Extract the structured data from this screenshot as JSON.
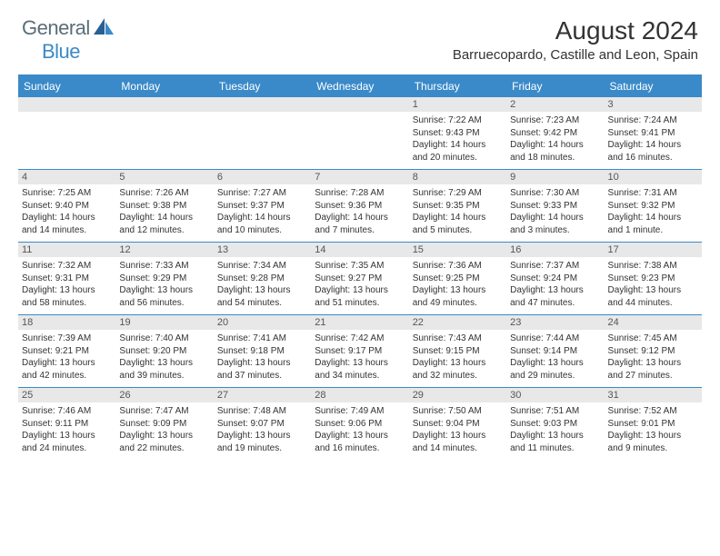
{
  "brand": {
    "general": "General",
    "blue": "Blue"
  },
  "title": "August 2024",
  "location": "Barruecopardo, Castille and Leon, Spain",
  "weekdays": [
    "Sunday",
    "Monday",
    "Tuesday",
    "Wednesday",
    "Thursday",
    "Friday",
    "Saturday"
  ],
  "colors": {
    "accent": "#3a8ac9",
    "weekday_bg": "#3a8ac9",
    "daynum_bg": "#e8e8e8",
    "text": "#333333",
    "logo_gray": "#5a6e78"
  },
  "weeks": [
    [
      {
        "n": "",
        "lines": []
      },
      {
        "n": "",
        "lines": []
      },
      {
        "n": "",
        "lines": []
      },
      {
        "n": "",
        "lines": []
      },
      {
        "n": "1",
        "lines": [
          "Sunrise: 7:22 AM",
          "Sunset: 9:43 PM",
          "Daylight: 14 hours and 20 minutes."
        ]
      },
      {
        "n": "2",
        "lines": [
          "Sunrise: 7:23 AM",
          "Sunset: 9:42 PM",
          "Daylight: 14 hours and 18 minutes."
        ]
      },
      {
        "n": "3",
        "lines": [
          "Sunrise: 7:24 AM",
          "Sunset: 9:41 PM",
          "Daylight: 14 hours and 16 minutes."
        ]
      }
    ],
    [
      {
        "n": "4",
        "lines": [
          "Sunrise: 7:25 AM",
          "Sunset: 9:40 PM",
          "Daylight: 14 hours and 14 minutes."
        ]
      },
      {
        "n": "5",
        "lines": [
          "Sunrise: 7:26 AM",
          "Sunset: 9:38 PM",
          "Daylight: 14 hours and 12 minutes."
        ]
      },
      {
        "n": "6",
        "lines": [
          "Sunrise: 7:27 AM",
          "Sunset: 9:37 PM",
          "Daylight: 14 hours and 10 minutes."
        ]
      },
      {
        "n": "7",
        "lines": [
          "Sunrise: 7:28 AM",
          "Sunset: 9:36 PM",
          "Daylight: 14 hours and 7 minutes."
        ]
      },
      {
        "n": "8",
        "lines": [
          "Sunrise: 7:29 AM",
          "Sunset: 9:35 PM",
          "Daylight: 14 hours and 5 minutes."
        ]
      },
      {
        "n": "9",
        "lines": [
          "Sunrise: 7:30 AM",
          "Sunset: 9:33 PM",
          "Daylight: 14 hours and 3 minutes."
        ]
      },
      {
        "n": "10",
        "lines": [
          "Sunrise: 7:31 AM",
          "Sunset: 9:32 PM",
          "Daylight: 14 hours and 1 minute."
        ]
      }
    ],
    [
      {
        "n": "11",
        "lines": [
          "Sunrise: 7:32 AM",
          "Sunset: 9:31 PM",
          "Daylight: 13 hours and 58 minutes."
        ]
      },
      {
        "n": "12",
        "lines": [
          "Sunrise: 7:33 AM",
          "Sunset: 9:29 PM",
          "Daylight: 13 hours and 56 minutes."
        ]
      },
      {
        "n": "13",
        "lines": [
          "Sunrise: 7:34 AM",
          "Sunset: 9:28 PM",
          "Daylight: 13 hours and 54 minutes."
        ]
      },
      {
        "n": "14",
        "lines": [
          "Sunrise: 7:35 AM",
          "Sunset: 9:27 PM",
          "Daylight: 13 hours and 51 minutes."
        ]
      },
      {
        "n": "15",
        "lines": [
          "Sunrise: 7:36 AM",
          "Sunset: 9:25 PM",
          "Daylight: 13 hours and 49 minutes."
        ]
      },
      {
        "n": "16",
        "lines": [
          "Sunrise: 7:37 AM",
          "Sunset: 9:24 PM",
          "Daylight: 13 hours and 47 minutes."
        ]
      },
      {
        "n": "17",
        "lines": [
          "Sunrise: 7:38 AM",
          "Sunset: 9:23 PM",
          "Daylight: 13 hours and 44 minutes."
        ]
      }
    ],
    [
      {
        "n": "18",
        "lines": [
          "Sunrise: 7:39 AM",
          "Sunset: 9:21 PM",
          "Daylight: 13 hours and 42 minutes."
        ]
      },
      {
        "n": "19",
        "lines": [
          "Sunrise: 7:40 AM",
          "Sunset: 9:20 PM",
          "Daylight: 13 hours and 39 minutes."
        ]
      },
      {
        "n": "20",
        "lines": [
          "Sunrise: 7:41 AM",
          "Sunset: 9:18 PM",
          "Daylight: 13 hours and 37 minutes."
        ]
      },
      {
        "n": "21",
        "lines": [
          "Sunrise: 7:42 AM",
          "Sunset: 9:17 PM",
          "Daylight: 13 hours and 34 minutes."
        ]
      },
      {
        "n": "22",
        "lines": [
          "Sunrise: 7:43 AM",
          "Sunset: 9:15 PM",
          "Daylight: 13 hours and 32 minutes."
        ]
      },
      {
        "n": "23",
        "lines": [
          "Sunrise: 7:44 AM",
          "Sunset: 9:14 PM",
          "Daylight: 13 hours and 29 minutes."
        ]
      },
      {
        "n": "24",
        "lines": [
          "Sunrise: 7:45 AM",
          "Sunset: 9:12 PM",
          "Daylight: 13 hours and 27 minutes."
        ]
      }
    ],
    [
      {
        "n": "25",
        "lines": [
          "Sunrise: 7:46 AM",
          "Sunset: 9:11 PM",
          "Daylight: 13 hours and 24 minutes."
        ]
      },
      {
        "n": "26",
        "lines": [
          "Sunrise: 7:47 AM",
          "Sunset: 9:09 PM",
          "Daylight: 13 hours and 22 minutes."
        ]
      },
      {
        "n": "27",
        "lines": [
          "Sunrise: 7:48 AM",
          "Sunset: 9:07 PM",
          "Daylight: 13 hours and 19 minutes."
        ]
      },
      {
        "n": "28",
        "lines": [
          "Sunrise: 7:49 AM",
          "Sunset: 9:06 PM",
          "Daylight: 13 hours and 16 minutes."
        ]
      },
      {
        "n": "29",
        "lines": [
          "Sunrise: 7:50 AM",
          "Sunset: 9:04 PM",
          "Daylight: 13 hours and 14 minutes."
        ]
      },
      {
        "n": "30",
        "lines": [
          "Sunrise: 7:51 AM",
          "Sunset: 9:03 PM",
          "Daylight: 13 hours and 11 minutes."
        ]
      },
      {
        "n": "31",
        "lines": [
          "Sunrise: 7:52 AM",
          "Sunset: 9:01 PM",
          "Daylight: 13 hours and 9 minutes."
        ]
      }
    ]
  ]
}
